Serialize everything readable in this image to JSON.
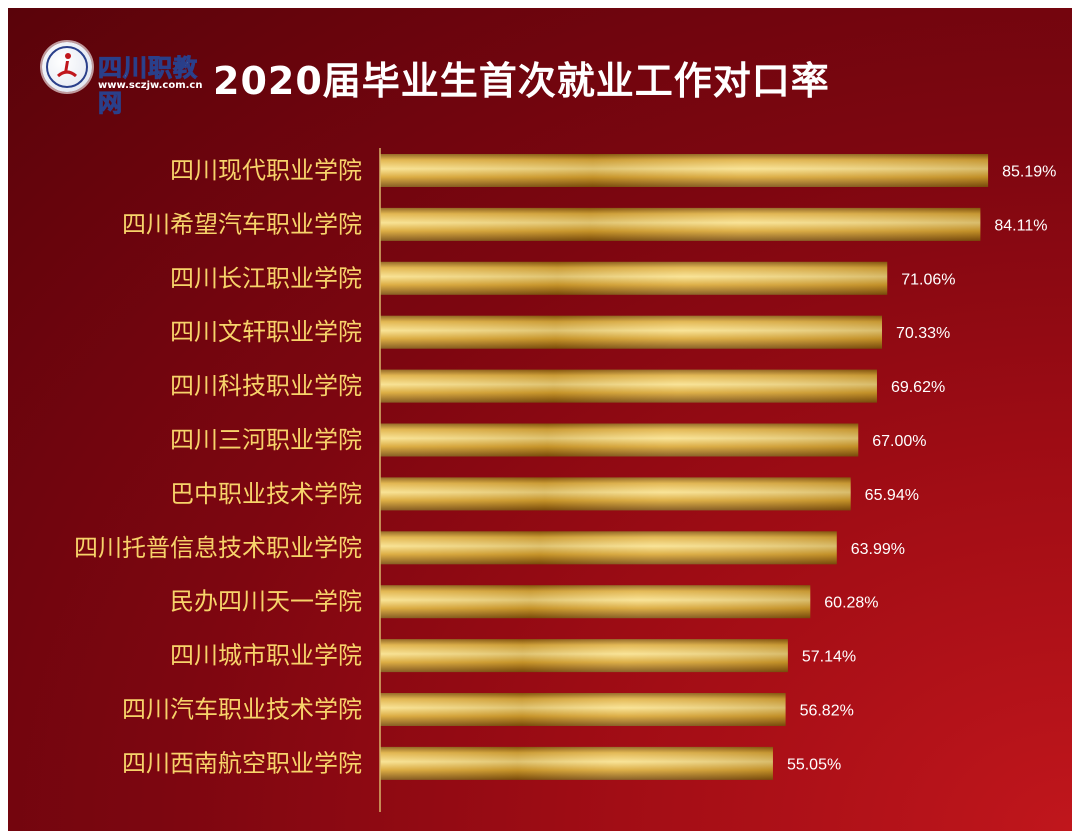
{
  "header": {
    "logo_text": "四川职教网",
    "logo_url": "www.sczjw.com.cn",
    "title": "2020届毕业生首次就业工作对口率"
  },
  "colors": {
    "background_dark": "#5a030a",
    "background_light": "#c0161c",
    "bar_gold_light": "#f6d97a",
    "bar_gold": "#d8a22c",
    "bar_gold_dark": "#8a5a10",
    "category_label": "#f7d36a",
    "value_label": "#ffffff",
    "axis": "#d9b56a"
  },
  "chart_data": {
    "type": "bar",
    "orientation": "horizontal",
    "title": "2020届毕业生首次就业工作对口率",
    "categories": [
      "四川现代职业学院",
      "四川希望汽车职业学院",
      "四川长江职业学院",
      "四川文轩职业学院",
      "四川科技职业学院",
      "四川三河职业学院",
      "巴中职业技术学院",
      "四川托普信息技术职业学院",
      "民办四川天一学院",
      "四川城市职业学院",
      "四川汽车职业技术学院",
      "四川西南航空职业学院"
    ],
    "values": [
      85.19,
      84.11,
      71.06,
      70.33,
      69.62,
      67.0,
      65.94,
      63.99,
      60.28,
      57.14,
      56.82,
      55.05
    ],
    "value_labels": [
      "85.19%",
      "84.11%",
      "71.06%",
      "70.33%",
      "69.62%",
      "67.00%",
      "65.94%",
      "63.99%",
      "60.28%",
      "57.14%",
      "56.82%",
      "55.05%"
    ],
    "unit": "%",
    "xlim": [
      0,
      87
    ],
    "grid": false,
    "legend": "none"
  }
}
